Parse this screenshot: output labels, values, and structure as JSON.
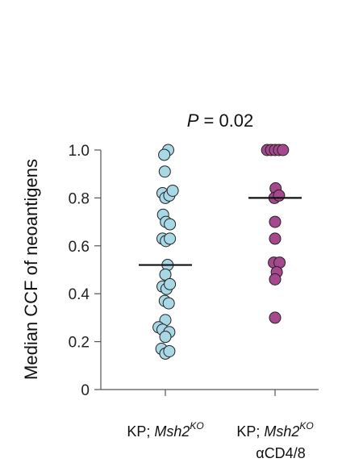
{
  "chart_data": {
    "type": "scatter",
    "ylabel": "Median CCF of neoantigens",
    "ylim": [
      0,
      1.0
    ],
    "yticks": [
      "0",
      "0.2",
      "0.4",
      "0.6",
      "0.8",
      "1.0"
    ],
    "annotation": {
      "italic": "P",
      "text": " = 0.02"
    },
    "series": [
      {
        "category_line1_prefix": "KP; ",
        "category_line1_italic": "Msh2",
        "category_line1_sup": "KO",
        "category_line2": "",
        "color": "#a8d8e6",
        "median": 0.52,
        "points": [
          [
            0.05,
            1.0
          ],
          [
            -0.02,
            0.98
          ],
          [
            -0.01,
            0.91
          ],
          [
            -0.05,
            0.82
          ],
          [
            0.0,
            0.8
          ],
          [
            0.07,
            0.81
          ],
          [
            0.13,
            0.83
          ],
          [
            -0.04,
            0.73
          ],
          [
            0.01,
            0.7
          ],
          [
            0.08,
            0.69
          ],
          [
            -0.05,
            0.63
          ],
          [
            0.01,
            0.62
          ],
          [
            0.08,
            0.63
          ],
          [
            0.04,
            0.52
          ],
          [
            0.0,
            0.48
          ],
          [
            -0.05,
            0.43
          ],
          [
            0.02,
            0.42
          ],
          [
            0.08,
            0.44
          ],
          [
            -0.01,
            0.37
          ],
          [
            0.06,
            0.36
          ],
          [
            0.0,
            0.29
          ],
          [
            -0.12,
            0.26
          ],
          [
            -0.05,
            0.25
          ],
          [
            0.07,
            0.24
          ],
          [
            0.0,
            0.22
          ],
          [
            -0.07,
            0.17
          ],
          [
            0.0,
            0.15
          ],
          [
            0.07,
            0.16
          ]
        ]
      },
      {
        "category_line1_prefix": "KP; ",
        "category_line1_italic": "Msh2",
        "category_line1_sup": "KO",
        "category_line2": "αCD4/8",
        "color": "#a6488e",
        "median": 0.8,
        "points": [
          [
            -0.14,
            1.0
          ],
          [
            -0.07,
            1.0
          ],
          [
            0.0,
            1.0
          ],
          [
            0.07,
            1.0
          ],
          [
            0.14,
            1.0
          ],
          [
            0.01,
            0.84
          ],
          [
            -0.01,
            0.8
          ],
          [
            0.07,
            0.81
          ],
          [
            0.0,
            0.7
          ],
          [
            0.0,
            0.63
          ],
          [
            -0.02,
            0.53
          ],
          [
            0.08,
            0.53
          ],
          [
            0.03,
            0.49
          ],
          [
            0.0,
            0.46
          ],
          [
            0.0,
            0.3
          ]
        ]
      }
    ]
  }
}
